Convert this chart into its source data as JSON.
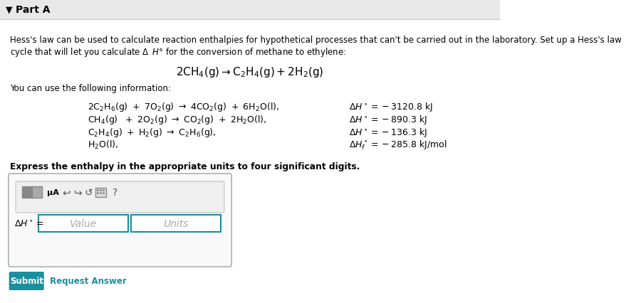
{
  "bg_color": "#f5f5f5",
  "white_bg": "#ffffff",
  "header_bg": "#e8e8e8",
  "title": "Part A",
  "paragraph": "Hess's law can be used to calculate reaction enthalpies for hypothetical processes that can't be carried out in the laboratory. Set up a Hess's law\ncycle that will let you calculate Δ H° for the conversion of methane to ethylene:",
  "main_equation": "2CH$_4$(g) → C$_2$H$_4$(g) + 2H$_2$(g)",
  "info_line": "You can use the following information:",
  "bold_instruction": "Express the enthalpy in the appropriate units to four significant digits.",
  "submit_label": "Submit",
  "request_label": "Request Answer",
  "submit_bg": "#1a8fa0",
  "submit_text": "#ffffff",
  "link_color": "#1a8fa0",
  "border_color": "#b0b0b0",
  "input_border": "#1a8fa0"
}
